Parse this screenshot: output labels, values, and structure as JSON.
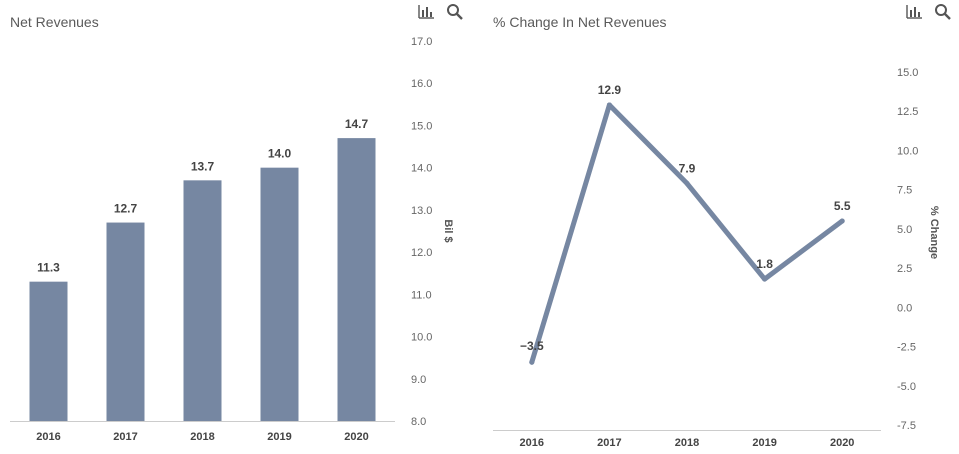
{
  "icons": {
    "chart": "bar-chart-icon",
    "search": "search-icon"
  },
  "colors": {
    "series": "#7687a2",
    "axis": "#cccccc",
    "text": "#5a5a5a"
  },
  "chart_data": [
    {
      "type": "bar",
      "title": "Net Revenues",
      "xlabel": "",
      "ylabel": "Bil $",
      "categories": [
        "2016",
        "2017",
        "2018",
        "2019",
        "2020"
      ],
      "values": [
        11.3,
        12.7,
        13.7,
        14.0,
        14.7
      ],
      "value_labels": [
        "11.3",
        "12.7",
        "13.7",
        "14.0",
        "14.7"
      ],
      "ylim": [
        8.0,
        17.0
      ],
      "yticks": [
        8.0,
        9.0,
        10.0,
        11.0,
        12.0,
        13.0,
        14.0,
        15.0,
        16.0,
        17.0
      ],
      "ytick_labels": [
        "8.0",
        "9.0",
        "10.0",
        "11.0",
        "12.0",
        "13.0",
        "14.0",
        "15.0",
        "16.0",
        "17.0"
      ],
      "grid": false
    },
    {
      "type": "line",
      "title": "% Change In Net Revenues",
      "xlabel": "",
      "ylabel": "% Change",
      "categories": [
        "2016",
        "2017",
        "2018",
        "2019",
        "2020"
      ],
      "values": [
        -3.5,
        12.9,
        7.9,
        1.8,
        5.5
      ],
      "value_labels": [
        "−3.5",
        "12.9",
        "7.9",
        "1.8",
        "5.5"
      ],
      "ylim": [
        -7.5,
        15.0
      ],
      "yticks": [
        -7.5,
        -5.0,
        -2.5,
        0.0,
        2.5,
        5.0,
        7.5,
        10.0,
        12.5,
        15.0
      ],
      "ytick_labels": [
        "-7.5",
        "-5.0",
        "-2.5",
        "0.0",
        "2.5",
        "5.0",
        "7.5",
        "10.0",
        "12.5",
        "15.0"
      ],
      "grid": false
    }
  ]
}
